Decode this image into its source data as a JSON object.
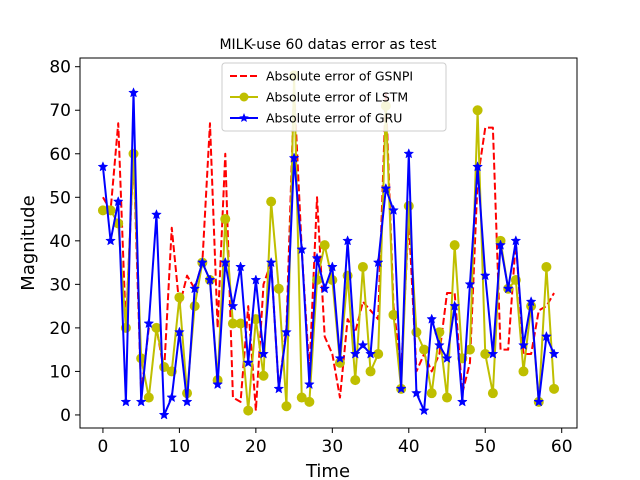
{
  "chart_data": {
    "type": "line",
    "title": "MILK-use 60 datas error as test",
    "xlabel": "Time",
    "ylabel": "Magnitude",
    "xlim": [
      -3,
      62
    ],
    "ylim": [
      -3,
      82
    ],
    "xticks": [
      0,
      10,
      20,
      30,
      40,
      50,
      60
    ],
    "yticks": [
      0,
      10,
      20,
      30,
      40,
      50,
      60,
      70,
      80
    ],
    "grid": false,
    "legend_position": "top-center",
    "series": [
      {
        "name": "Absolute error of GSNPI",
        "color": "#ff0000",
        "style": "dashed",
        "marker": "none",
        "values": [
          50,
          47,
          67,
          20,
          60,
          5,
          20,
          20,
          10,
          43,
          25,
          32,
          29,
          35,
          67,
          20,
          60,
          4,
          3,
          25,
          1,
          30,
          35,
          6,
          20,
          75,
          38,
          10,
          50,
          18,
          14,
          4,
          22,
          19,
          26,
          24,
          22,
          74,
          25,
          10,
          45,
          10,
          14,
          10,
          14,
          28,
          28,
          5,
          12,
          54,
          66,
          66,
          15,
          15,
          40,
          14,
          14,
          24,
          25,
          28
        ]
      },
      {
        "name": "Absolute error of LSTM",
        "color": "#bfbf00",
        "style": "solid",
        "marker": "circle",
        "values": [
          47,
          47,
          44,
          20,
          60,
          13,
          4,
          20,
          11,
          10,
          27,
          5,
          25,
          35,
          31,
          8,
          45,
          21,
          21,
          1,
          22,
          9,
          49,
          29,
          2,
          78,
          4,
          3,
          31,
          39,
          31,
          12,
          32,
          8,
          34,
          10,
          14,
          71,
          23,
          6,
          48,
          19,
          15,
          5,
          19,
          4,
          39,
          13,
          15,
          70,
          14,
          5,
          40,
          29,
          31,
          10,
          25,
          3,
          34,
          6
        ]
      },
      {
        "name": "Absolute error of GRU",
        "color": "#0000ff",
        "style": "solid",
        "marker": "star",
        "values": [
          57,
          40,
          49,
          3,
          74,
          3,
          21,
          46,
          0,
          4,
          19,
          3,
          29,
          35,
          31,
          7,
          35,
          25,
          34,
          12,
          31,
          14,
          35,
          6,
          19,
          59,
          38,
          7,
          36,
          29,
          34,
          13,
          40,
          14,
          16,
          14,
          35,
          52,
          47,
          6,
          60,
          5,
          1,
          22,
          16,
          13,
          25,
          3,
          30,
          57,
          32,
          14,
          39,
          29,
          40,
          16,
          26,
          3,
          18,
          14
        ]
      }
    ]
  }
}
